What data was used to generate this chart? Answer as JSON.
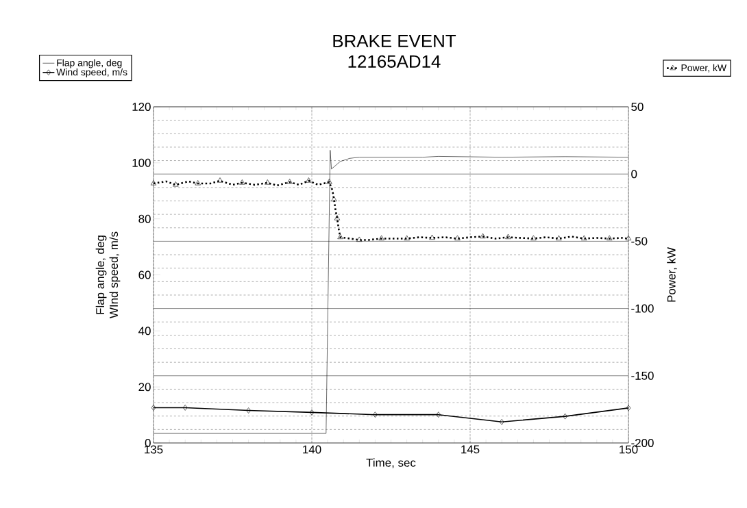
{
  "chart_data": {
    "type": "line",
    "title": "BRAKE EVENT",
    "subtitle": "12165AD14",
    "xlabel": "Time, sec",
    "ylabel": [
      "Flap angle, deg",
      "WInd speed, m/s"
    ],
    "y2label": "Power, kW",
    "xlim": [
      135,
      150
    ],
    "xticks": [
      135,
      140,
      145,
      150
    ],
    "ylim": [
      0,
      120
    ],
    "yticks": [
      0,
      20,
      40,
      60,
      80,
      100,
      120
    ],
    "y2lim": [
      -200,
      50
    ],
    "y2ticks": [
      -200,
      -150,
      -100,
      -50,
      0,
      50
    ],
    "grid": true,
    "legend": "top",
    "series": [
      {
        "name": "Flap angle, deg",
        "color": "#000000",
        "line_style": "solid",
        "x": [
          135,
          140.45,
          140.58,
          140.62,
          140.9,
          141.2,
          141.5,
          143.5,
          144,
          146,
          148,
          150
        ],
        "values": [
          3.4,
          3.4,
          104.5,
          97.8,
          100.5,
          101.6,
          102,
          102,
          102.3,
          102,
          102.2,
          102
        ]
      },
      {
        "name": "Wind speed, m/s",
        "color": "#000000",
        "line_style": "solid",
        "marker": "diamond",
        "x": [
          135,
          136,
          138,
          140,
          142,
          144,
          146,
          148,
          150
        ],
        "values": [
          12.6,
          12.6,
          11.6,
          10.9,
          10.1,
          10.1,
          7.5,
          9.5,
          12.5
        ]
      },
      {
        "name": "Power, kW",
        "color": "#000000",
        "line_style": "dotted",
        "marker": "triangle",
        "axis": "y2",
        "x": [
          135,
          135.4,
          135.7,
          136.1,
          136.4,
          136.8,
          137.1,
          137.5,
          137.8,
          138.2,
          138.6,
          138.9,
          139.3,
          139.6,
          139.9,
          140.2,
          140.55,
          140.65,
          140.7,
          140.75,
          140.8,
          140.85,
          140.9,
          141.2,
          141.5,
          141.8,
          142.2,
          142.6,
          143,
          143.4,
          143.8,
          144.2,
          144.6,
          145,
          145.4,
          145.8,
          146.2,
          146.6,
          147,
          147.4,
          147.8,
          148.2,
          148.6,
          149,
          149.4,
          149.8,
          150
        ],
        "values": [
          -7,
          -5.5,
          -8,
          -5.5,
          -7,
          -7,
          -5,
          -8,
          -6.5,
          -8,
          -6.5,
          -8.5,
          -6,
          -8,
          -5,
          -8,
          -6,
          -12,
          -19,
          -27,
          -33,
          -41,
          -47,
          -48,
          -49,
          -49,
          -48,
          -48,
          -48,
          -47,
          -47.5,
          -47,
          -48,
          -47,
          -46.5,
          -48,
          -47,
          -47.5,
          -48,
          -47,
          -48,
          -46.5,
          -48,
          -47.5,
          -48,
          -47.5,
          -48
        ]
      }
    ]
  }
}
